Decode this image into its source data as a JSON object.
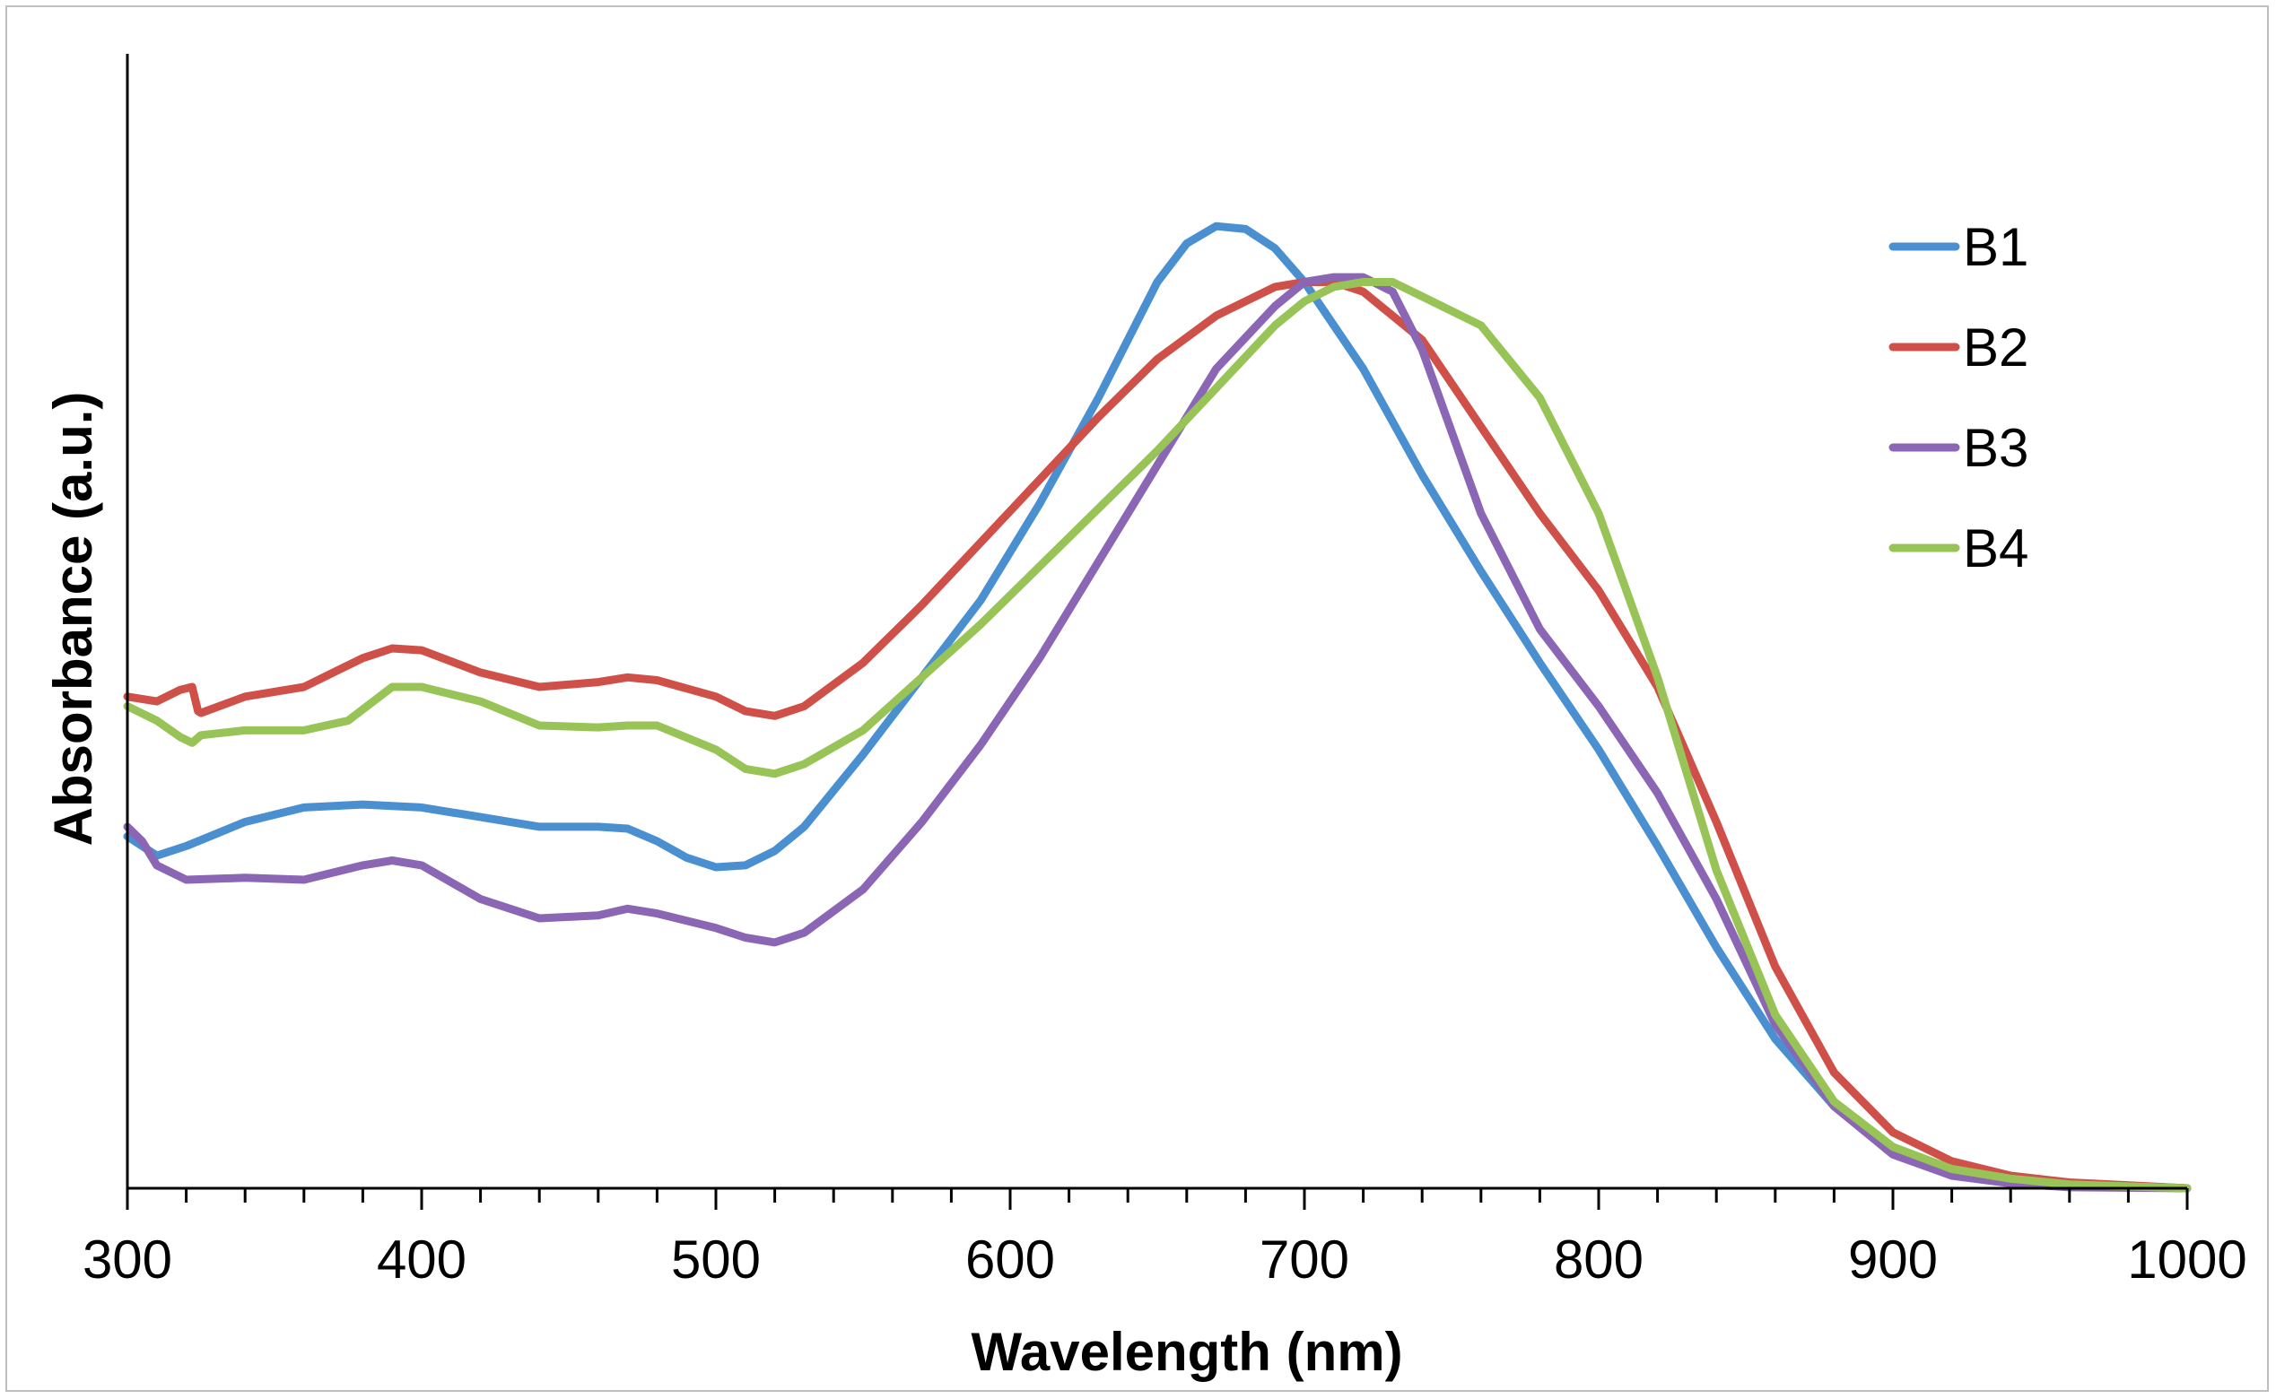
{
  "chart_data": {
    "type": "line",
    "title": "",
    "xlabel": "Wavelength (nm)",
    "ylabel": "Absorbance (a.u.)",
    "xlim": [
      300,
      1000
    ],
    "ylim": [
      0,
      1
    ],
    "xticks": [
      300,
      400,
      500,
      600,
      700,
      800,
      900,
      1000
    ],
    "x_minor_step": 20,
    "grid": false,
    "legend_position": "right",
    "series": [
      {
        "name": "B1",
        "color": "#4a8fd0",
        "points": [
          [
            300,
            0.365
          ],
          [
            310,
            0.345
          ],
          [
            320,
            0.355
          ],
          [
            340,
            0.38
          ],
          [
            360,
            0.395
          ],
          [
            380,
            0.398
          ],
          [
            400,
            0.395
          ],
          [
            420,
            0.385
          ],
          [
            440,
            0.375
          ],
          [
            460,
            0.375
          ],
          [
            470,
            0.373
          ],
          [
            480,
            0.36
          ],
          [
            490,
            0.343
          ],
          [
            500,
            0.333
          ],
          [
            510,
            0.335
          ],
          [
            520,
            0.35
          ],
          [
            530,
            0.375
          ],
          [
            550,
            0.45
          ],
          [
            570,
            0.53
          ],
          [
            590,
            0.61
          ],
          [
            610,
            0.71
          ],
          [
            630,
            0.82
          ],
          [
            650,
            0.94
          ],
          [
            660,
            0.98
          ],
          [
            670,
            0.998
          ],
          [
            680,
            0.995
          ],
          [
            690,
            0.975
          ],
          [
            700,
            0.94
          ],
          [
            720,
            0.85
          ],
          [
            740,
            0.74
          ],
          [
            760,
            0.64
          ],
          [
            780,
            0.545
          ],
          [
            800,
            0.455
          ],
          [
            820,
            0.355
          ],
          [
            840,
            0.25
          ],
          [
            860,
            0.155
          ],
          [
            880,
            0.085
          ],
          [
            900,
            0.04
          ],
          [
            920,
            0.02
          ],
          [
            940,
            0.01
          ],
          [
            960,
            0.004
          ],
          [
            1000,
            0.0
          ]
        ]
      },
      {
        "name": "B2",
        "color": "#cf5048",
        "points": [
          [
            300,
            0.51
          ],
          [
            310,
            0.505
          ],
          [
            318,
            0.517
          ],
          [
            322,
            0.52
          ],
          [
            324,
            0.495
          ],
          [
            325,
            0.493
          ],
          [
            340,
            0.51
          ],
          [
            360,
            0.52
          ],
          [
            380,
            0.55
          ],
          [
            390,
            0.56
          ],
          [
            400,
            0.558
          ],
          [
            420,
            0.535
          ],
          [
            440,
            0.52
          ],
          [
            460,
            0.525
          ],
          [
            470,
            0.53
          ],
          [
            480,
            0.527
          ],
          [
            500,
            0.51
          ],
          [
            510,
            0.495
          ],
          [
            520,
            0.49
          ],
          [
            530,
            0.5
          ],
          [
            550,
            0.545
          ],
          [
            570,
            0.605
          ],
          [
            590,
            0.67
          ],
          [
            610,
            0.735
          ],
          [
            630,
            0.8
          ],
          [
            650,
            0.86
          ],
          [
            670,
            0.905
          ],
          [
            690,
            0.935
          ],
          [
            700,
            0.94
          ],
          [
            710,
            0.94
          ],
          [
            720,
            0.93
          ],
          [
            740,
            0.88
          ],
          [
            760,
            0.79
          ],
          [
            780,
            0.7
          ],
          [
            800,
            0.62
          ],
          [
            820,
            0.52
          ],
          [
            840,
            0.38
          ],
          [
            860,
            0.23
          ],
          [
            880,
            0.12
          ],
          [
            900,
            0.058
          ],
          [
            920,
            0.028
          ],
          [
            940,
            0.013
          ],
          [
            960,
            0.006
          ],
          [
            1000,
            0.0
          ]
        ]
      },
      {
        "name": "B3",
        "color": "#8a66b4",
        "points": [
          [
            300,
            0.375
          ],
          [
            305,
            0.36
          ],
          [
            310,
            0.335
          ],
          [
            320,
            0.32
          ],
          [
            340,
            0.322
          ],
          [
            360,
            0.32
          ],
          [
            380,
            0.335
          ],
          [
            390,
            0.34
          ],
          [
            400,
            0.335
          ],
          [
            420,
            0.3
          ],
          [
            440,
            0.28
          ],
          [
            460,
            0.283
          ],
          [
            470,
            0.29
          ],
          [
            480,
            0.285
          ],
          [
            500,
            0.27
          ],
          [
            510,
            0.26
          ],
          [
            520,
            0.255
          ],
          [
            530,
            0.265
          ],
          [
            550,
            0.31
          ],
          [
            570,
            0.38
          ],
          [
            590,
            0.46
          ],
          [
            610,
            0.55
          ],
          [
            630,
            0.65
          ],
          [
            650,
            0.75
          ],
          [
            670,
            0.85
          ],
          [
            690,
            0.915
          ],
          [
            700,
            0.94
          ],
          [
            710,
            0.945
          ],
          [
            720,
            0.945
          ],
          [
            730,
            0.93
          ],
          [
            740,
            0.87
          ],
          [
            760,
            0.7
          ],
          [
            780,
            0.58
          ],
          [
            800,
            0.5
          ],
          [
            820,
            0.41
          ],
          [
            840,
            0.3
          ],
          [
            860,
            0.17
          ],
          [
            880,
            0.085
          ],
          [
            900,
            0.035
          ],
          [
            920,
            0.013
          ],
          [
            940,
            0.005
          ],
          [
            960,
            0.001
          ],
          [
            1000,
            0.0
          ]
        ]
      },
      {
        "name": "B4",
        "color": "#98c356",
        "points": [
          [
            300,
            0.5
          ],
          [
            310,
            0.485
          ],
          [
            318,
            0.468
          ],
          [
            322,
            0.462
          ],
          [
            325,
            0.47
          ],
          [
            340,
            0.475
          ],
          [
            360,
            0.475
          ],
          [
            375,
            0.485
          ],
          [
            390,
            0.52
          ],
          [
            400,
            0.52
          ],
          [
            420,
            0.505
          ],
          [
            440,
            0.48
          ],
          [
            460,
            0.478
          ],
          [
            470,
            0.48
          ],
          [
            480,
            0.48
          ],
          [
            500,
            0.455
          ],
          [
            510,
            0.435
          ],
          [
            520,
            0.43
          ],
          [
            530,
            0.44
          ],
          [
            550,
            0.475
          ],
          [
            570,
            0.53
          ],
          [
            590,
            0.585
          ],
          [
            610,
            0.645
          ],
          [
            630,
            0.705
          ],
          [
            650,
            0.765
          ],
          [
            670,
            0.83
          ],
          [
            690,
            0.895
          ],
          [
            700,
            0.92
          ],
          [
            710,
            0.935
          ],
          [
            720,
            0.94
          ],
          [
            730,
            0.94
          ],
          [
            740,
            0.925
          ],
          [
            760,
            0.895
          ],
          [
            780,
            0.82
          ],
          [
            800,
            0.7
          ],
          [
            820,
            0.53
          ],
          [
            840,
            0.33
          ],
          [
            860,
            0.18
          ],
          [
            880,
            0.09
          ],
          [
            900,
            0.043
          ],
          [
            920,
            0.02
          ],
          [
            940,
            0.01
          ],
          [
            960,
            0.004
          ],
          [
            1000,
            0.0
          ]
        ]
      }
    ]
  }
}
